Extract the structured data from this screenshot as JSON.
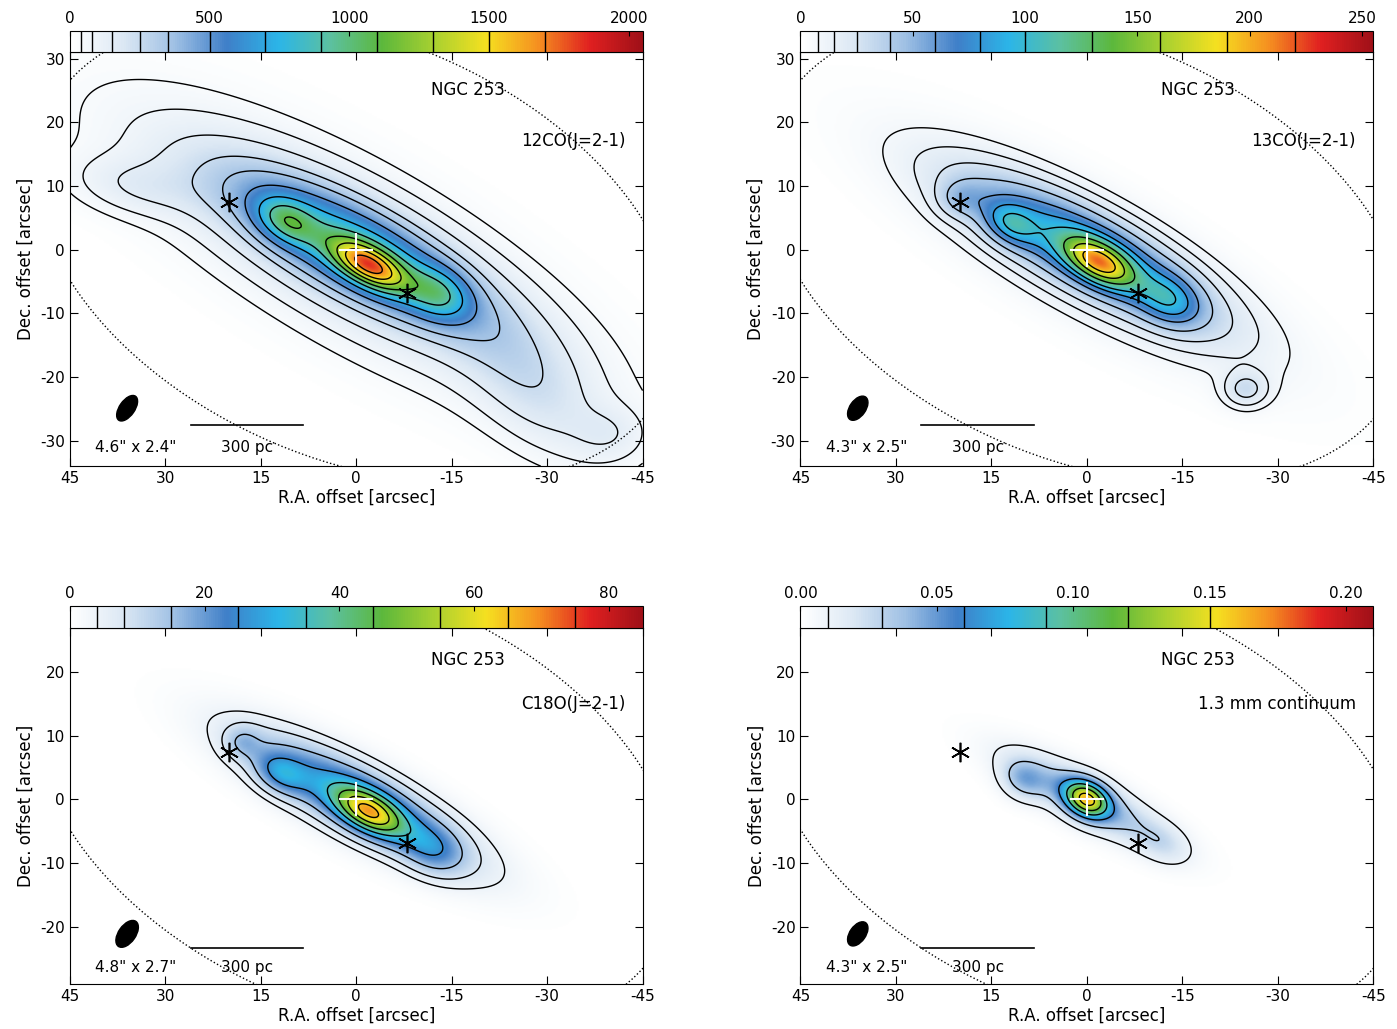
{
  "chart_data": [
    {
      "type": "contour_map",
      "title": "NGC 253",
      "subtitle": "12CO(J=2-1)",
      "x_label": "R.A. offset [arcsec]",
      "y_label": "Dec. offset [arcsec]",
      "xlim": [
        45,
        -45
      ],
      "xticks": [
        45,
        30,
        15,
        0,
        -15,
        -30,
        -45
      ],
      "ylim": [
        -34,
        31
      ],
      "yticks": [
        -30,
        -20,
        -10,
        0,
        10,
        20,
        30
      ],
      "colorbar": {
        "range": [
          0,
          2050
        ],
        "ticks": [
          0,
          500,
          1000,
          1500,
          2000
        ]
      },
      "contour_levels": [
        40,
        80,
        150,
        250,
        350,
        500,
        700,
        900,
        1100,
        1300,
        1500,
        1700
      ],
      "components": [
        {
          "x": -2,
          "y": -2.5,
          "peak": 1000,
          "sigma_major": 4.5,
          "sigma_minor": 2.0,
          "pa": 28
        },
        {
          "x": 0,
          "y": 0,
          "peak": 650,
          "sigma_major": 15,
          "sigma_minor": 4.5,
          "pa": 28
        },
        {
          "x": 0,
          "y": -1,
          "peak": 220,
          "sigma_major": 26,
          "sigma_minor": 8,
          "pa": 30
        },
        {
          "x": 11,
          "y": 4.5,
          "peak": 450,
          "sigma_major": 3.5,
          "sigma_minor": 2.2,
          "pa": 28
        },
        {
          "x": -13,
          "y": -7,
          "peak": 400,
          "sigma_major": 3.5,
          "sigma_minor": 2.5,
          "pa": 28
        },
        {
          "x": -28,
          "y": -22,
          "peak": 150,
          "sigma_major": 9,
          "sigma_minor": 5,
          "pa": 45
        },
        {
          "x": -40,
          "y": -29,
          "peak": 90,
          "sigma_major": 4,
          "sigma_minor": 3,
          "pa": 0
        },
        {
          "x": 35,
          "y": 10,
          "peak": 110,
          "sigma_major": 7,
          "sigma_minor": 3,
          "pa": 10
        }
      ],
      "beam": {
        "major": 4.6,
        "minor": 2.4,
        "pa": 125,
        "label": "4.6\" x 2.4\""
      },
      "scale_bar": {
        "label": "300 pc",
        "length": 17.7
      },
      "stars": {
        "marker": "asterisk",
        "color": "black",
        "points": [
          [
            20,
            7.5
          ],
          [
            -8,
            -6.8
          ]
        ]
      },
      "center": {
        "marker": "plus",
        "color": "white",
        "point": [
          0,
          0
        ]
      },
      "field_of_view": {
        "center": [
          0,
          0
        ],
        "width": 106,
        "height": 66,
        "angle": 23
      }
    },
    {
      "type": "contour_map",
      "title": "NGC 253",
      "subtitle": "13CO(J=2-1)",
      "x_label": "R.A. offset [arcsec]",
      "y_label": "Dec. offset [arcsec]",
      "xlim": [
        45,
        -45
      ],
      "xticks": [
        45,
        30,
        15,
        0,
        -15,
        -30,
        -45
      ],
      "ylim": [
        -34,
        31
      ],
      "yticks": [
        -30,
        -20,
        -10,
        0,
        10,
        20,
        30
      ],
      "colorbar": {
        "range": [
          0,
          255
        ],
        "ticks": [
          0,
          50,
          100,
          150,
          200,
          250
        ]
      },
      "contour_levels": [
        8,
        15,
        25,
        40,
        60,
        80,
        100,
        130,
        160,
        190,
        220
      ],
      "components": [
        {
          "x": -2,
          "y": -2,
          "peak": 120,
          "sigma_major": 4,
          "sigma_minor": 2,
          "pa": 28
        },
        {
          "x": 0,
          "y": 0,
          "peak": 80,
          "sigma_major": 14,
          "sigma_minor": 4,
          "pa": 28
        },
        {
          "x": 0,
          "y": -1,
          "peak": 20,
          "sigma_major": 22,
          "sigma_minor": 6,
          "pa": 30
        },
        {
          "x": 12,
          "y": 4,
          "peak": 45,
          "sigma_major": 3,
          "sigma_minor": 2,
          "pa": 28
        },
        {
          "x": -13,
          "y": -8,
          "peak": 45,
          "sigma_major": 3.5,
          "sigma_minor": 2.5,
          "pa": 28
        },
        {
          "x": -25,
          "y": -22,
          "peak": 25,
          "sigma_major": 2.5,
          "sigma_minor": 2,
          "pa": 0
        },
        {
          "x": 20,
          "y": 8,
          "peak": 20,
          "sigma_major": 2.5,
          "sigma_minor": 2,
          "pa": 0
        }
      ],
      "beam": {
        "major": 4.3,
        "minor": 2.5,
        "pa": 125,
        "label": "4.3\" x 2.5\""
      },
      "scale_bar": {
        "label": "300 pc",
        "length": 17.7
      },
      "stars": {
        "marker": "asterisk",
        "color": "black",
        "points": [
          [
            20,
            7.5
          ],
          [
            -8,
            -6.8
          ]
        ]
      },
      "center": {
        "marker": "plus",
        "color": "white",
        "point": [
          0,
          0
        ]
      },
      "field_of_view": {
        "center": [
          0,
          0
        ],
        "width": 106,
        "height": 66,
        "angle": 23
      }
    },
    {
      "type": "contour_map",
      "title": "NGC 253",
      "subtitle": "C18O(J=2-1)",
      "x_label": "R.A. offset [arcsec]",
      "y_label": "Dec. offset [arcsec]",
      "xlim": [
        45,
        -45
      ],
      "xticks": [
        45,
        30,
        15,
        0,
        -15,
        -30,
        -45
      ],
      "ylim": [
        -29,
        27
      ],
      "yticks": [
        -20,
        -10,
        0,
        10,
        20
      ],
      "colorbar": {
        "range": [
          0,
          85
        ],
        "ticks": [
          0,
          20,
          40,
          60,
          80
        ]
      },
      "contour_levels": [
        4,
        8,
        15,
        25,
        35,
        45,
        55,
        65,
        75
      ],
      "components": [
        {
          "x": -2,
          "y": -2,
          "peak": 40,
          "sigma_major": 4,
          "sigma_minor": 2,
          "pa": 28
        },
        {
          "x": 0,
          "y": 0,
          "peak": 30,
          "sigma_major": 13,
          "sigma_minor": 3.5,
          "pa": 28
        },
        {
          "x": 12,
          "y": 4,
          "peak": 15,
          "sigma_major": 3,
          "sigma_minor": 2,
          "pa": 28
        },
        {
          "x": -12,
          "y": -8,
          "peak": 12,
          "sigma_major": 3.5,
          "sigma_minor": 2.5,
          "pa": 28
        },
        {
          "x": 18,
          "y": 9,
          "peak": 8,
          "sigma_major": 2,
          "sigma_minor": 1.8,
          "pa": 0
        }
      ],
      "beam": {
        "major": 4.8,
        "minor": 2.7,
        "pa": 125,
        "label": "4.8\" x 2.7\""
      },
      "scale_bar": {
        "label": "300 pc",
        "length": 17.7
      },
      "stars": {
        "marker": "asterisk",
        "color": "black",
        "points": [
          [
            20,
            7.5
          ],
          [
            -8,
            -6.8
          ]
        ]
      },
      "center": {
        "marker": "plus",
        "color": "white",
        "point": [
          0,
          0
        ]
      },
      "field_of_view": {
        "center": [
          0,
          0
        ],
        "width": 106,
        "height": 66,
        "angle": 23
      }
    },
    {
      "type": "contour_map",
      "title": "NGC 253",
      "subtitle": "1.3 mm continuum",
      "x_label": "R.A. offset [arcsec]",
      "y_label": "Dec. offset [arcsec]",
      "xlim": [
        45,
        -45
      ],
      "xticks": [
        45,
        30,
        15,
        0,
        -15,
        -30,
        -45
      ],
      "ylim": [
        -29,
        27
      ],
      "yticks": [
        -20,
        -10,
        0,
        10,
        20
      ],
      "colorbar": {
        "range": [
          0,
          0.21
        ],
        "ticks": [
          {
            "value": 0,
            "label": "0.00"
          },
          {
            "value": 0.05,
            "label": "0.05"
          },
          {
            "value": 0.1,
            "label": "0.10"
          },
          {
            "value": 0.15,
            "label": "0.15"
          },
          {
            "value": 0.2,
            "label": "0.20"
          }
        ]
      },
      "contour_levels": [
        0.01,
        0.03,
        0.06,
        0.09,
        0.12,
        0.15
      ],
      "components": [
        {
          "x": 0,
          "y": 0,
          "peak": 0.12,
          "sigma_major": 2.5,
          "sigma_minor": 1.8,
          "pa": 28
        },
        {
          "x": 0,
          "y": 0,
          "peak": 0.045,
          "sigma_major": 9,
          "sigma_minor": 2.5,
          "pa": 28
        },
        {
          "x": 10,
          "y": 3,
          "peak": 0.03,
          "sigma_major": 2.5,
          "sigma_minor": 2,
          "pa": 28
        },
        {
          "x": -12,
          "y": -7,
          "peak": 0.015,
          "sigma_major": 3,
          "sigma_minor": 2,
          "pa": 28
        }
      ],
      "beam": {
        "major": 4.3,
        "minor": 2.5,
        "pa": 125,
        "label": "4.3\" x 2.5\""
      },
      "scale_bar": {
        "label": "300 pc",
        "length": 17.7
      },
      "stars": {
        "marker": "asterisk",
        "color": "black",
        "points": [
          [
            20,
            7.5
          ],
          [
            -8,
            -6.8
          ]
        ]
      },
      "center": {
        "marker": "plus",
        "color": "white",
        "point": [
          0,
          0
        ]
      },
      "field_of_view": {
        "center": [
          0,
          0
        ],
        "width": 106,
        "height": 66,
        "angle": 23
      }
    }
  ]
}
